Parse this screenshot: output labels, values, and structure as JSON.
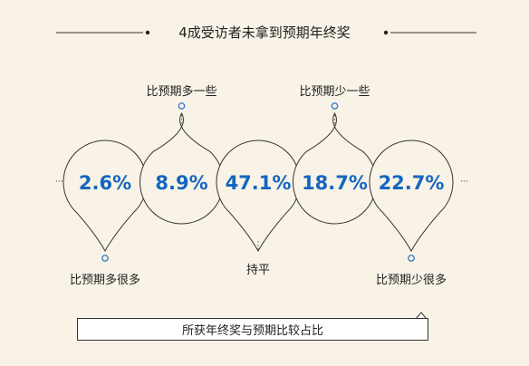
{
  "header": {
    "title": "4成受访者未拿到预期年终奖"
  },
  "caption": "所获年终奖与预期比较占比",
  "colors": {
    "value": "#1566c0",
    "line": "#333333",
    "marker": "#3a7fcc",
    "text": "#222222",
    "background": "#f8f3e6"
  },
  "chart_data": {
    "type": "pie-bubbles",
    "title": "4成受访者未拿到预期年终奖",
    "categories": [
      "比预期多很多",
      "比预期多一些",
      "持平",
      "比预期少一些",
      "比预期少很多"
    ],
    "values": [
      2.6,
      8.9,
      47.1,
      18.7,
      22.7
    ],
    "value_labels": [
      "2.6%",
      "8.9%",
      "47.1%",
      "18.7%",
      "22.7%"
    ],
    "unit": "%",
    "pointer_directions": [
      "down",
      "up",
      "down",
      "up",
      "down"
    ]
  }
}
